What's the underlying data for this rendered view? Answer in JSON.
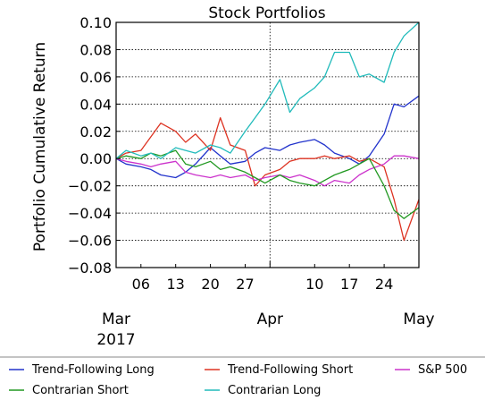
{
  "chart_data": {
    "type": "line",
    "title": "Stock Portfolios",
    "xlabel": "",
    "ylabel": "Portfolio Cumulative Return",
    "ylim": [
      -0.08,
      0.1
    ],
    "yticks": [
      "0.10",
      "0.08",
      "0.06",
      "0.04",
      "0.02",
      "0.00",
      "−0.02",
      "−0.04",
      "−0.06",
      "−0.08"
    ],
    "xlim": [
      "2017-03-01",
      "2017-05-01"
    ],
    "xticks_minor": [
      {
        "date": "2017-03-06",
        "label": "06"
      },
      {
        "date": "2017-03-13",
        "label": "13"
      },
      {
        "date": "2017-03-20",
        "label": "20"
      },
      {
        "date": "2017-03-27",
        "label": "27"
      },
      {
        "date": "2017-04-10",
        "label": "10"
      },
      {
        "date": "2017-04-17",
        "label": "17"
      },
      {
        "date": "2017-04-24",
        "label": "24"
      }
    ],
    "xticks_major": [
      {
        "date": "2017-03-01",
        "label": "Mar",
        "sub": "2017"
      },
      {
        "date": "2017-04-01",
        "label": "Apr",
        "sub": ""
      },
      {
        "date": "2017-05-01",
        "label": "May",
        "sub": ""
      }
    ],
    "grid": true,
    "legend_position": "bottom",
    "series": [
      {
        "name": "Trend-Following Long",
        "color": "#2233cc",
        "x": [
          "2017-03-01",
          "2017-03-03",
          "2017-03-06",
          "2017-03-08",
          "2017-03-10",
          "2017-03-13",
          "2017-03-15",
          "2017-03-17",
          "2017-03-20",
          "2017-03-22",
          "2017-03-24",
          "2017-03-27",
          "2017-03-29",
          "2017-03-31",
          "2017-04-03",
          "2017-04-05",
          "2017-04-07",
          "2017-04-10",
          "2017-04-12",
          "2017-04-14",
          "2017-04-17",
          "2017-04-19",
          "2017-04-21",
          "2017-04-24",
          "2017-04-26",
          "2017-04-28",
          "2017-05-01"
        ],
        "values": [
          0.0,
          -0.004,
          -0.006,
          -0.008,
          -0.012,
          -0.014,
          -0.01,
          -0.004,
          0.008,
          0.002,
          -0.004,
          -0.002,
          0.004,
          0.008,
          0.006,
          0.01,
          0.012,
          0.014,
          0.01,
          0.004,
          0.0,
          -0.004,
          0.002,
          0.018,
          0.04,
          0.038,
          0.046
        ]
      },
      {
        "name": "Trend-Following Short",
        "color": "#dd3322",
        "x": [
          "2017-03-01",
          "2017-03-03",
          "2017-03-06",
          "2017-03-08",
          "2017-03-10",
          "2017-03-13",
          "2017-03-15",
          "2017-03-17",
          "2017-03-20",
          "2017-03-22",
          "2017-03-24",
          "2017-03-27",
          "2017-03-29",
          "2017-03-31",
          "2017-04-03",
          "2017-04-05",
          "2017-04-07",
          "2017-04-10",
          "2017-04-12",
          "2017-04-14",
          "2017-04-17",
          "2017-04-19",
          "2017-04-21",
          "2017-04-24",
          "2017-04-26",
          "2017-04-28",
          "2017-05-01"
        ],
        "values": [
          0.0,
          0.004,
          0.006,
          0.016,
          0.026,
          0.02,
          0.012,
          0.018,
          0.006,
          0.03,
          0.01,
          0.006,
          -0.02,
          -0.012,
          -0.008,
          -0.002,
          0.0,
          0.0,
          0.002,
          0.0,
          0.002,
          -0.002,
          0.0,
          -0.006,
          -0.03,
          -0.06,
          -0.03
        ]
      },
      {
        "name": "S&P 500",
        "color": "#cc33cc",
        "x": [
          "2017-03-01",
          "2017-03-03",
          "2017-03-06",
          "2017-03-08",
          "2017-03-10",
          "2017-03-13",
          "2017-03-15",
          "2017-03-17",
          "2017-03-20",
          "2017-03-22",
          "2017-03-24",
          "2017-03-27",
          "2017-03-29",
          "2017-03-31",
          "2017-04-03",
          "2017-04-05",
          "2017-04-07",
          "2017-04-10",
          "2017-04-12",
          "2017-04-14",
          "2017-04-17",
          "2017-04-19",
          "2017-04-21",
          "2017-04-24",
          "2017-04-26",
          "2017-04-28",
          "2017-05-01"
        ],
        "values": [
          0.0,
          -0.002,
          -0.004,
          -0.006,
          -0.004,
          -0.002,
          -0.01,
          -0.012,
          -0.014,
          -0.012,
          -0.014,
          -0.012,
          -0.016,
          -0.014,
          -0.012,
          -0.014,
          -0.012,
          -0.016,
          -0.02,
          -0.016,
          -0.018,
          -0.012,
          -0.008,
          -0.004,
          0.002,
          0.002,
          0.0
        ]
      },
      {
        "name": "Contrarian Short",
        "color": "#229922",
        "x": [
          "2017-03-01",
          "2017-03-03",
          "2017-03-06",
          "2017-03-08",
          "2017-03-10",
          "2017-03-13",
          "2017-03-15",
          "2017-03-17",
          "2017-03-20",
          "2017-03-22",
          "2017-03-24",
          "2017-03-27",
          "2017-03-29",
          "2017-03-31",
          "2017-04-03",
          "2017-04-05",
          "2017-04-07",
          "2017-04-10",
          "2017-04-12",
          "2017-04-14",
          "2017-04-17",
          "2017-04-19",
          "2017-04-21",
          "2017-04-24",
          "2017-04-26",
          "2017-04-28",
          "2017-05-01"
        ],
        "values": [
          0.0,
          0.002,
          0.0,
          0.004,
          0.002,
          0.006,
          -0.004,
          -0.006,
          -0.002,
          -0.008,
          -0.006,
          -0.01,
          -0.014,
          -0.018,
          -0.012,
          -0.016,
          -0.018,
          -0.02,
          -0.016,
          -0.012,
          -0.008,
          -0.004,
          0.0,
          -0.02,
          -0.038,
          -0.044,
          -0.036
        ]
      },
      {
        "name": "Contrarian Long",
        "color": "#22bbbb",
        "x": [
          "2017-03-01",
          "2017-03-03",
          "2017-03-06",
          "2017-03-08",
          "2017-03-10",
          "2017-03-13",
          "2017-03-15",
          "2017-03-17",
          "2017-03-20",
          "2017-03-22",
          "2017-03-24",
          "2017-03-27",
          "2017-03-29",
          "2017-03-31",
          "2017-04-03",
          "2017-04-05",
          "2017-04-07",
          "2017-04-10",
          "2017-04-12",
          "2017-04-14",
          "2017-04-17",
          "2017-04-19",
          "2017-04-21",
          "2017-04-24",
          "2017-04-26",
          "2017-04-28",
          "2017-05-01"
        ],
        "values": [
          0.0,
          0.006,
          0.002,
          0.004,
          0.0,
          0.008,
          0.006,
          0.004,
          0.01,
          0.008,
          0.004,
          0.02,
          0.03,
          0.04,
          0.058,
          0.034,
          0.044,
          0.052,
          0.06,
          0.078,
          0.078,
          0.06,
          0.062,
          0.056,
          0.078,
          0.09,
          0.1
        ]
      }
    ]
  },
  "legend": {
    "rows": [
      [
        "Trend-Following Long",
        "Trend-Following Short",
        "S&P 500"
      ],
      [
        "Contrarian Short",
        "Contrarian Long"
      ]
    ]
  }
}
